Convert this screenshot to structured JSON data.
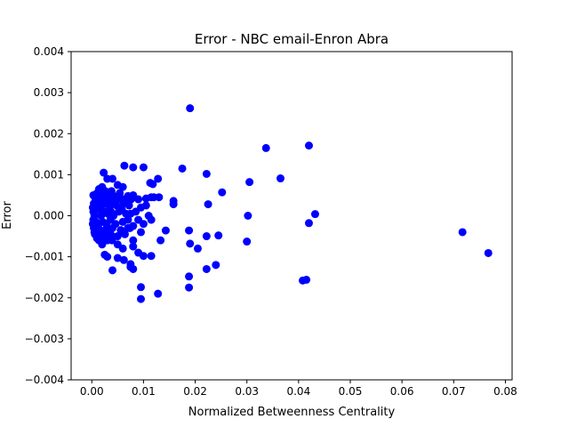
{
  "chart_data": {
    "type": "scatter",
    "title": "Error - NBC email-Enron Abra",
    "xlabel": "Normalized Betweenness Centrality",
    "ylabel": "Error",
    "xlim": [
      -0.004,
      0.0813
    ],
    "ylim": [
      -0.004,
      0.004
    ],
    "x_ticks": [
      0.0,
      0.01,
      0.02,
      0.03,
      0.04,
      0.05,
      0.06,
      0.07,
      0.08
    ],
    "x_tick_labels": [
      "0.00",
      "0.01",
      "0.02",
      "0.03",
      "0.04",
      "0.05",
      "0.06",
      "0.07",
      "0.08"
    ],
    "y_ticks": [
      -0.004,
      -0.003,
      -0.002,
      -0.001,
      0.0,
      0.001,
      0.002,
      0.003,
      0.004
    ],
    "y_tick_labels": [
      "−0.004",
      "−0.003",
      "−0.002",
      "−0.001",
      "0.000",
      "0.001",
      "0.002",
      "0.003",
      "0.004"
    ],
    "grid": false,
    "marker_color": "#0000ff",
    "series": [
      {
        "points": [
          [
            0.019,
            0.00262
          ],
          [
            0.0337,
            0.00165
          ],
          [
            0.042,
            0.00171
          ],
          [
            0.0365,
            0.00091
          ],
          [
            0.0305,
            0.00082
          ],
          [
            0.0175,
            0.00115
          ],
          [
            0.0222,
            0.00102
          ],
          [
            0.0252,
            0.00057
          ],
          [
            0.0225,
            0.00028
          ],
          [
            0.0432,
            4e-05
          ],
          [
            0.0302,
            0.0
          ],
          [
            0.042,
            -0.00018
          ],
          [
            0.0717,
            -0.0004
          ],
          [
            0.0767,
            -0.00091
          ],
          [
            0.03,
            -0.00063
          ],
          [
            0.0245,
            -0.00048
          ],
          [
            0.0222,
            -0.0005
          ],
          [
            0.019,
            -0.00068
          ],
          [
            0.0205,
            -0.0008
          ],
          [
            0.0188,
            -0.00036
          ],
          [
            0.024,
            -0.0012
          ],
          [
            0.0222,
            -0.0013
          ],
          [
            0.0188,
            -0.00148
          ],
          [
            0.0188,
            -0.00175
          ],
          [
            0.0408,
            -0.00158
          ],
          [
            0.0415,
            -0.00156
          ],
          [
            0.0128,
            -0.0019
          ],
          [
            0.0095,
            -0.00174
          ],
          [
            0.0095,
            -0.00203
          ],
          [
            0.0158,
            0.00036
          ],
          [
            0.0158,
            0.00028
          ],
          [
            0.0143,
            -0.00036
          ],
          [
            0.0133,
            -0.0006
          ],
          [
            0.0115,
            -0.00098
          ],
          [
            0.01,
            -0.00098
          ],
          [
            0.009,
            -0.0009
          ],
          [
            0.0075,
            -0.00118
          ],
          [
            0.008,
            -0.0013
          ],
          [
            0.0075,
            -0.00125
          ],
          [
            0.0062,
            -0.00108
          ],
          [
            0.005,
            -0.00103
          ],
          [
            0.004,
            -0.00133
          ],
          [
            0.003,
            -0.001
          ],
          [
            0.0025,
            -0.00095
          ],
          [
            0.0063,
            0.00122
          ],
          [
            0.008,
            0.00118
          ],
          [
            0.01,
            0.00118
          ],
          [
            0.0128,
            0.0009
          ],
          [
            0.0113,
            0.0008
          ],
          [
            0.0118,
            0.00077
          ],
          [
            0.0023,
            0.00105
          ],
          [
            0.003,
            0.0009
          ],
          [
            0.004,
            0.0009
          ],
          [
            0.005,
            0.00075
          ],
          [
            0.006,
            0.0007
          ],
          [
            0.0115,
            0.00045
          ],
          [
            0.0105,
            0.00042
          ],
          [
            0.012,
            0.00045
          ],
          [
            0.009,
            0.0004
          ],
          [
            0.013,
            0.00045
          ],
          [
            0.008,
            0.0005
          ],
          [
            0.007,
            0.00048
          ],
          [
            0.006,
            0.0004
          ],
          [
            0.005,
            0.0004
          ],
          [
            0.004,
            0.0005
          ],
          [
            0.0105,
            0.00025
          ],
          [
            0.0095,
            0.0002
          ],
          [
            0.0085,
            0.0001
          ],
          [
            0.0075,
            5e-05
          ],
          [
            0.011,
            0.0
          ],
          [
            0.009,
            -0.0001
          ],
          [
            0.01,
            -0.0002
          ],
          [
            0.008,
            -0.00025
          ],
          [
            0.007,
            -0.0003
          ],
          [
            0.0115,
            -0.0001
          ],
          [
            0.0095,
            -0.0004
          ],
          [
            0.008,
            -0.0006
          ],
          [
            0.008,
            -0.00075
          ],
          [
            0.006,
            -0.0008
          ],
          [
            0.005,
            -0.0007
          ],
          [
            0.004,
            -0.0005
          ],
          [
            0.003,
            -0.0006
          ],
          [
            0.002,
            -0.0007
          ],
          [
            0.0015,
            -0.0005
          ],
          [
            0.006,
            -0.0004
          ],
          [
            0.0002,
            0.0002
          ],
          [
            0.0002,
            -0.0002
          ],
          [
            0.0003,
            0.0001
          ],
          [
            0.0003,
            -0.0001
          ],
          [
            0.0004,
            0.0003
          ],
          [
            0.0004,
            -0.0003
          ],
          [
            0.0005,
            0.0
          ],
          [
            0.0006,
            0.00045
          ],
          [
            0.0006,
            -0.00045
          ],
          [
            0.0008,
            0.00015
          ],
          [
            0.0008,
            -0.00015
          ],
          [
            0.001,
            0.00055
          ],
          [
            0.001,
            -0.00055
          ],
          [
            0.0012,
            0.00025
          ],
          [
            0.0012,
            -0.00025
          ],
          [
            0.0014,
            0.00065
          ],
          [
            0.0014,
            -0.0006
          ],
          [
            0.0016,
            0.00035
          ],
          [
            0.0016,
            -0.00035
          ],
          [
            0.0018,
            0.0
          ],
          [
            0.002,
            0.0007
          ],
          [
            0.002,
            0.00045
          ],
          [
            0.0022,
            -0.0004
          ],
          [
            0.0024,
            0.0001
          ],
          [
            0.0026,
            0.0006
          ],
          [
            0.0028,
            -0.0002
          ],
          [
            0.003,
            0.00035
          ],
          [
            0.0032,
            -0.00045
          ],
          [
            0.0034,
            0.0002
          ],
          [
            0.0036,
            -0.0001
          ],
          [
            0.0038,
            0.0006
          ],
          [
            0.004,
            -0.0003
          ],
          [
            0.0042,
            0.0
          ],
          [
            0.0044,
            0.0004
          ],
          [
            0.0046,
            -0.0002
          ],
          [
            0.0048,
            0.00025
          ],
          [
            0.005,
            -0.0005
          ],
          [
            0.0052,
            0.0001
          ],
          [
            0.0054,
            0.00055
          ],
          [
            0.0056,
            -0.00035
          ],
          [
            0.0058,
            0.00015
          ],
          [
            0.006,
            -0.00015
          ],
          [
            0.0062,
            0.0003
          ],
          [
            0.0064,
            -0.00045
          ],
          [
            0.0066,
            5e-05
          ],
          [
            0.0068,
            0.00035
          ],
          [
            0.007,
            -0.0001
          ],
          [
            0.0072,
            0.00025
          ],
          [
            0.0074,
            -0.0003
          ],
          [
            0.0076,
            0.0004
          ],
          [
            0.0003,
            0.0005
          ],
          [
            0.0005,
            -0.0004
          ],
          [
            0.0007,
            0.0003
          ],
          [
            0.0009,
            -0.0002
          ],
          [
            0.0011,
            0.0004
          ],
          [
            0.0013,
            -0.0004
          ],
          [
            0.0015,
            0.00015
          ],
          [
            0.0017,
            -0.00055
          ],
          [
            0.0019,
            0.00025
          ],
          [
            0.0021,
            -0.00015
          ],
          [
            0.0023,
            0.0005
          ],
          [
            0.0025,
            -0.0005
          ],
          [
            0.0027,
            0.0003
          ],
          [
            0.0029,
            -0.0003
          ],
          [
            0.0031,
            5e-05
          ],
          [
            0.0033,
            0.00045
          ],
          [
            0.0035,
            -0.0004
          ],
          [
            0.0037,
            0.0001
          ],
          [
            0.0039,
            -0.0006
          ],
          [
            0.0041,
            0.0003
          ]
        ]
      }
    ]
  }
}
